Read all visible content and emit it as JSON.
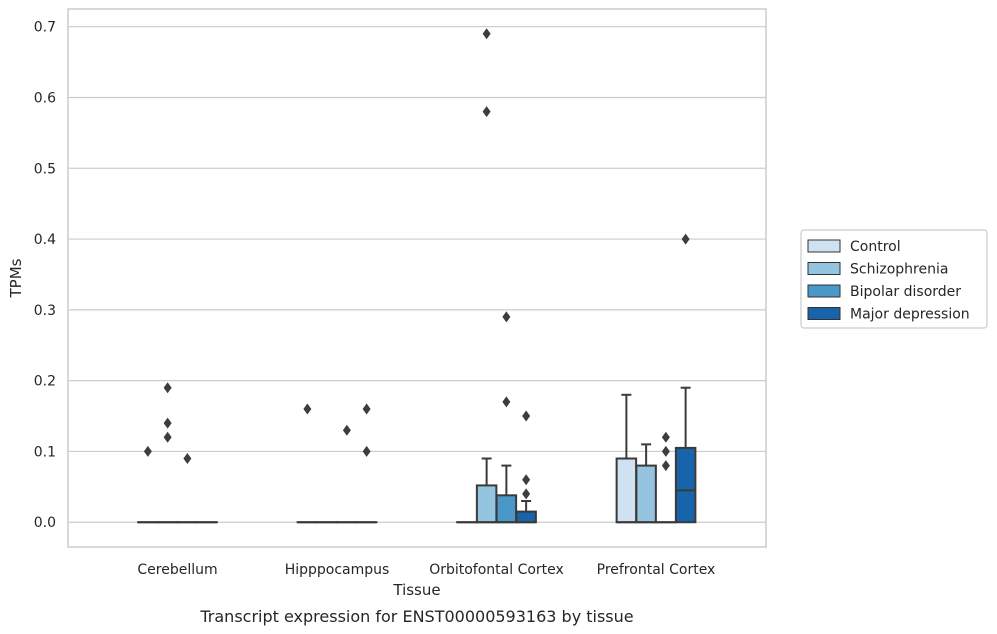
{
  "chart_data": {
    "type": "box",
    "title": "",
    "xlabel": "Tissue",
    "ylabel": "TPMs",
    "caption": "Transcript expression for ENST00000593163 by tissue",
    "categories": [
      "Cerebellum",
      "Hipppocampus",
      "Orbitofontal Cortex",
      "Prefrontal Cortex"
    ],
    "ylim": [
      -0.035,
      0.725
    ],
    "yticks": [
      0.0,
      0.1,
      0.2,
      0.3,
      0.4,
      0.5,
      0.6,
      0.7
    ],
    "ytick_labels": [
      "0.0",
      "0.1",
      "0.2",
      "0.3",
      "0.4",
      "0.5",
      "0.6",
      "0.7"
    ],
    "grid": true,
    "legend_position": "right",
    "series": [
      {
        "name": "Control",
        "color": "#d0e1f2",
        "boxes": [
          {
            "q1": 0,
            "median": 0,
            "q3": 0,
            "whisker_low": 0,
            "whisker_high": 0,
            "outliers": [
              0.1
            ]
          },
          {
            "q1": 0,
            "median": 0,
            "q3": 0,
            "whisker_low": 0,
            "whisker_high": 0,
            "outliers": [
              0.16
            ]
          },
          {
            "q1": 0,
            "median": 0,
            "q3": 0,
            "whisker_low": 0,
            "whisker_high": 0,
            "outliers": []
          },
          {
            "q1": 0,
            "median": 0,
            "q3": 0.09,
            "whisker_low": 0,
            "whisker_high": 0.18,
            "outliers": []
          }
        ]
      },
      {
        "name": "Schizophrenia",
        "color": "#94c4df",
        "boxes": [
          {
            "q1": 0,
            "median": 0,
            "q3": 0,
            "whisker_low": 0,
            "whisker_high": 0,
            "outliers": [
              0.12,
              0.14,
              0.19
            ]
          },
          {
            "q1": 0,
            "median": 0,
            "q3": 0,
            "whisker_low": 0,
            "whisker_high": 0,
            "outliers": []
          },
          {
            "q1": 0,
            "median": 0,
            "q3": 0.052,
            "whisker_low": 0,
            "whisker_high": 0.09,
            "outliers": [
              0.58,
              0.69
            ]
          },
          {
            "q1": 0,
            "median": 0,
            "q3": 0.08,
            "whisker_low": 0,
            "whisker_high": 0.11,
            "outliers": []
          }
        ]
      },
      {
        "name": "Bipolar disorder",
        "color": "#4a98c9",
        "boxes": [
          {
            "q1": 0,
            "median": 0,
            "q3": 0,
            "whisker_low": 0,
            "whisker_high": 0,
            "outliers": [
              0.09
            ]
          },
          {
            "q1": 0,
            "median": 0,
            "q3": 0,
            "whisker_low": 0,
            "whisker_high": 0,
            "outliers": [
              0.13
            ]
          },
          {
            "q1": 0,
            "median": 0,
            "q3": 0.038,
            "whisker_low": 0,
            "whisker_high": 0.08,
            "outliers": [
              0.17,
              0.29
            ]
          },
          {
            "q1": 0,
            "median": 0,
            "q3": 0,
            "whisker_low": 0,
            "whisker_high": 0,
            "outliers": [
              0.08,
              0.1,
              0.12
            ]
          }
        ]
      },
      {
        "name": "Major depression",
        "color": "#1764ab",
        "boxes": [
          {
            "q1": 0,
            "median": 0,
            "q3": 0,
            "whisker_low": 0,
            "whisker_high": 0,
            "outliers": []
          },
          {
            "q1": 0,
            "median": 0,
            "q3": 0,
            "whisker_low": 0,
            "whisker_high": 0,
            "outliers": [
              0.1,
              0.16
            ]
          },
          {
            "q1": 0,
            "median": 0,
            "q3": 0.015,
            "whisker_low": 0,
            "whisker_high": 0.03,
            "outliers": [
              0.04,
              0.06,
              0.15
            ]
          },
          {
            "q1": 0,
            "median": 0.045,
            "q3": 0.105,
            "whisker_low": 0,
            "whisker_high": 0.19,
            "outliers": [
              0.4
            ]
          }
        ]
      }
    ],
    "colors": {
      "grid": "#cccccc",
      "frame": "#cccccc",
      "edge": "#3a3a3a",
      "text": "#262626"
    }
  }
}
